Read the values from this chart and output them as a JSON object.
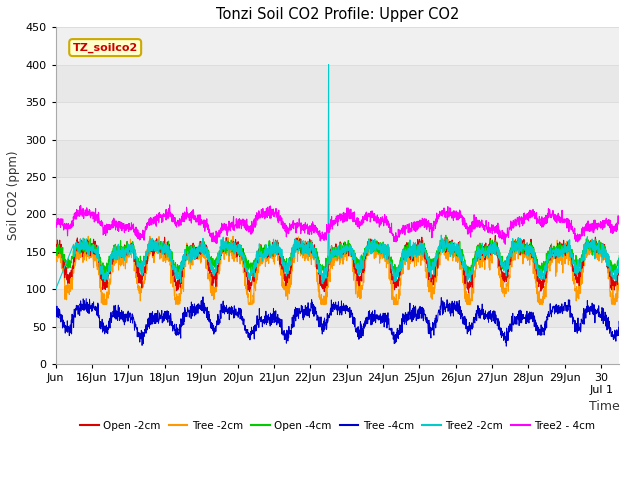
{
  "title": "Tonzi Soil CO2 Profile: Upper CO2",
  "ylabel": "Soil CO2 (ppm)",
  "xlabel": "Time",
  "ylim": [
    0,
    450
  ],
  "fig_width": 6.4,
  "fig_height": 4.8,
  "fig_dpi": 100,
  "bg_color": "#ffffff",
  "plot_bg_color": "#f0f0f0",
  "legend_label": "TZ_soilco2",
  "legend_text_color": "#cc0000",
  "legend_bg": "#ffffcc",
  "legend_border": "#ccaa00",
  "series": {
    "open_2cm": {
      "color": "#dd0000",
      "label": "Open -2cm"
    },
    "tree_2cm": {
      "color": "#ff9900",
      "label": "Tree -2cm"
    },
    "open_4cm": {
      "color": "#00cc00",
      "label": "Open -4cm"
    },
    "tree_4cm": {
      "color": "#0000cc",
      "label": "Tree -4cm"
    },
    "tree2_2cm": {
      "color": "#00cccc",
      "label": "Tree2 -2cm"
    },
    "tree2_4cm": {
      "color": "#ff00ff",
      "label": "Tree2 - 4cm"
    }
  },
  "grid_color": "#dddddd",
  "band_colors": [
    "#f0f0f0",
    "#e8e8e8"
  ],
  "x_tick_labels": [
    "Jun",
    "16Jun",
    "17Jun",
    "18Jun",
    "19Jun",
    "20Jun",
    "21Jun",
    "22Jun",
    "23Jun",
    "24Jun",
    "25Jun",
    "26Jun",
    "27Jun",
    "28Jun",
    "29Jun",
    "30\nJul 1"
  ]
}
